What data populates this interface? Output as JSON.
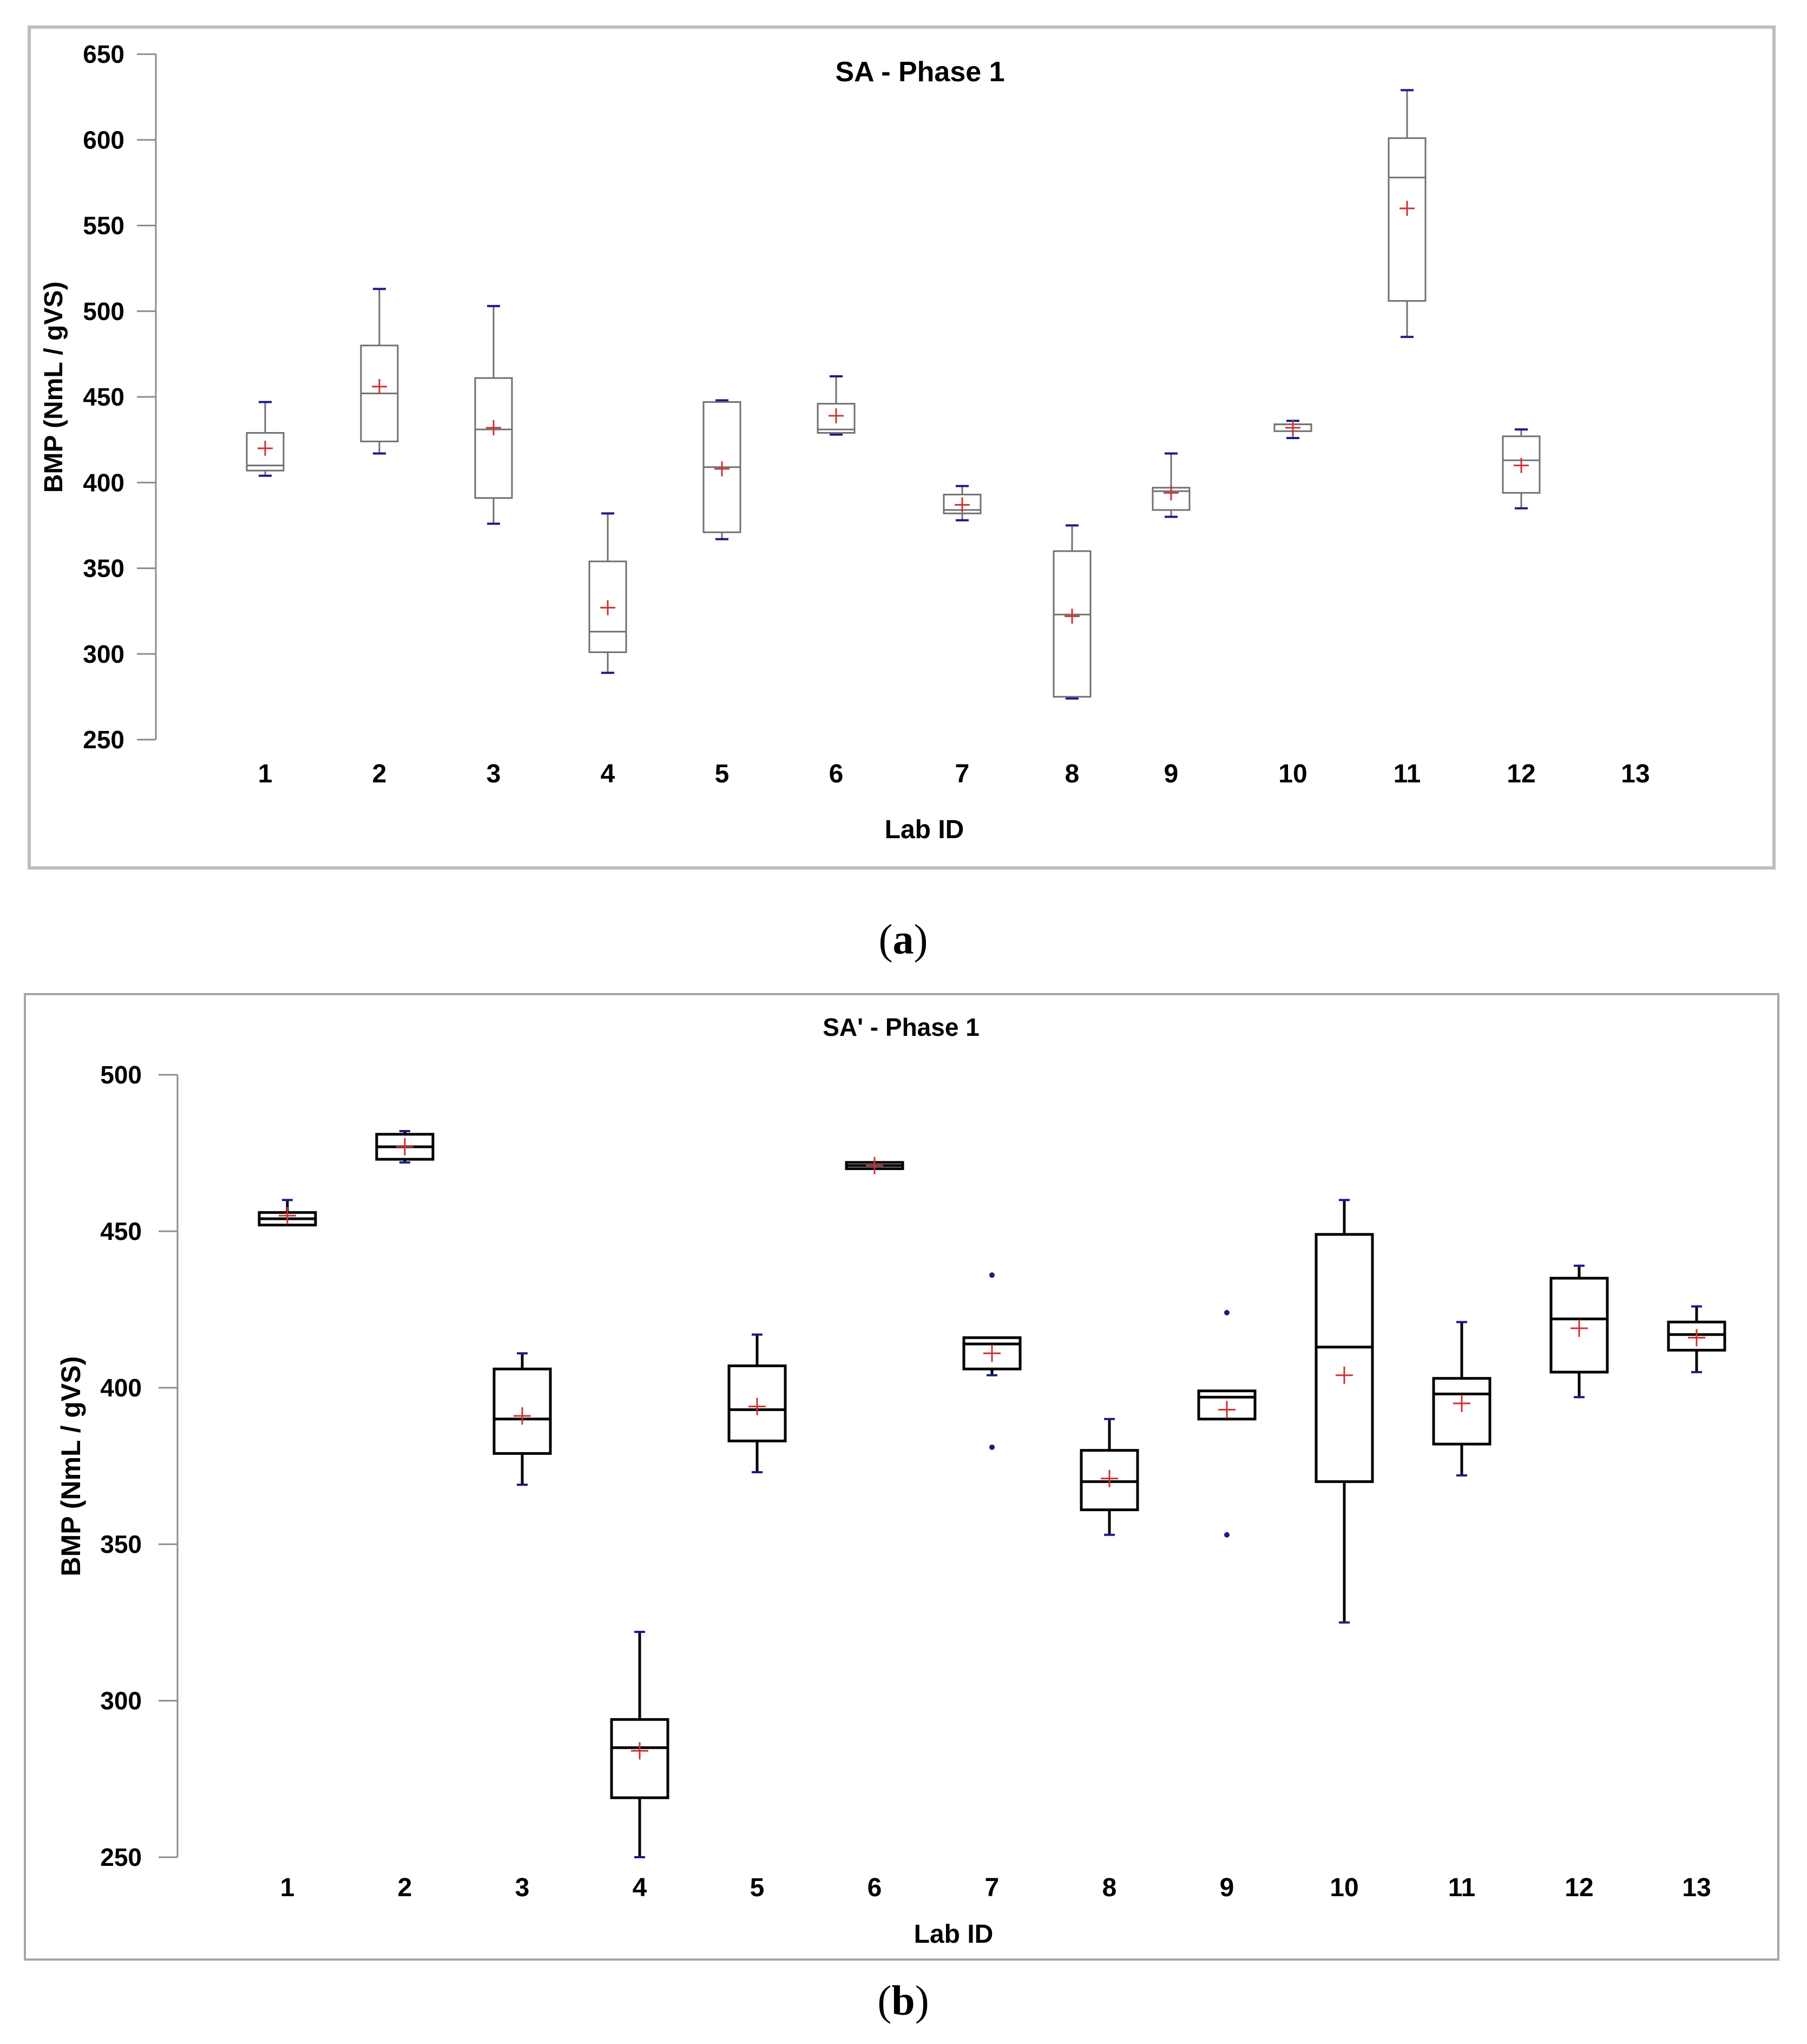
{
  "panels": [
    {
      "caption": "a",
      "chart_data": {
        "type": "box",
        "title": "SA - Phase 1",
        "xlabel": "Lab ID",
        "ylabel": "BMP (NmL / gVS)",
        "ylim": [
          250,
          650
        ],
        "yticks": [
          250,
          300,
          350,
          400,
          450,
          500,
          550,
          600,
          650
        ],
        "categories": [
          "1",
          "2",
          "3",
          "4",
          "5",
          "6",
          "7",
          "8",
          "9",
          "10",
          "11",
          "12",
          "13"
        ],
        "boxes": [
          {
            "lab": "1",
            "min": 404,
            "q1": 407,
            "median": 410,
            "q3": 429,
            "max": 447,
            "mean": 420,
            "outliers": []
          },
          {
            "lab": "2",
            "min": 417,
            "q1": 424,
            "median": 452,
            "q3": 480,
            "max": 513,
            "mean": 456,
            "outliers": []
          },
          {
            "lab": "3",
            "min": 376,
            "q1": 391,
            "median": 431,
            "q3": 461,
            "max": 503,
            "mean": 432,
            "outliers": []
          },
          {
            "lab": "4",
            "min": 289,
            "q1": 301,
            "median": 313,
            "q3": 354,
            "max": 382,
            "mean": 327,
            "outliers": []
          },
          {
            "lab": "5",
            "min": 367,
            "q1": 371,
            "median": 409,
            "q3": 447,
            "max": 448,
            "mean": 408,
            "outliers": []
          },
          {
            "lab": "6",
            "min": 428,
            "q1": 429,
            "median": 431,
            "q3": 446,
            "max": 462,
            "mean": 439,
            "outliers": []
          },
          {
            "lab": "7",
            "min": 378,
            "q1": 382,
            "median": 384,
            "q3": 393,
            "max": 398,
            "mean": 387,
            "outliers": []
          },
          {
            "lab": "8",
            "min": 274,
            "q1": 275,
            "median": 323,
            "q3": 360,
            "max": 375,
            "mean": 322,
            "outliers": []
          },
          {
            "lab": "9",
            "min": 380,
            "q1": 384,
            "median": 395,
            "q3": 397,
            "max": 417,
            "mean": 394,
            "outliers": []
          },
          {
            "lab": "10",
            "min": 426,
            "q1": 430,
            "median": 434,
            "q3": 434,
            "max": 436,
            "mean": 432,
            "outliers": []
          },
          {
            "lab": "11",
            "min": 485,
            "q1": 506,
            "median": 578,
            "q3": 601,
            "max": 629,
            "mean": 560,
            "outliers": []
          },
          {
            "lab": "12",
            "min": 385,
            "q1": 394,
            "median": 413,
            "q3": 427,
            "max": 431,
            "mean": 410,
            "outliers": []
          }
        ],
        "colors": {
          "box": "#707070",
          "whisker": "#707070",
          "endpoint": "#1a1a8c",
          "mean": "#cc3333",
          "frame": "#bdbdbd",
          "axis": "#8c8c8c",
          "text": "#000000"
        }
      }
    },
    {
      "caption": "b",
      "chart_data": {
        "type": "box",
        "title": "SA' - Phase 1",
        "xlabel": "Lab ID",
        "ylabel": "BMP (NmL / gVS)",
        "ylim": [
          250,
          500
        ],
        "yticks": [
          250,
          300,
          350,
          400,
          450,
          500
        ],
        "categories": [
          "1",
          "2",
          "3",
          "4",
          "5",
          "6",
          "7",
          "8",
          "9",
          "10",
          "11",
          "12",
          "13"
        ],
        "boxes": [
          {
            "lab": "1",
            "min": 452,
            "q1": 452,
            "median": 454,
            "q3": 456,
            "max": 460,
            "mean": 455,
            "outliers": []
          },
          {
            "lab": "2",
            "min": 472,
            "q1": 473,
            "median": 477,
            "q3": 481,
            "max": 482,
            "mean": 477,
            "outliers": []
          },
          {
            "lab": "3",
            "min": 369,
            "q1": 379,
            "median": 390,
            "q3": 406,
            "max": 411,
            "mean": 391,
            "outliers": []
          },
          {
            "lab": "4",
            "min": 250,
            "q1": 269,
            "median": 285,
            "q3": 294,
            "max": 322,
            "mean": 284,
            "outliers": []
          },
          {
            "lab": "5",
            "min": 373,
            "q1": 383,
            "median": 393,
            "q3": 407,
            "max": 417,
            "mean": 394,
            "outliers": []
          },
          {
            "lab": "6",
            "min": 470,
            "q1": 470,
            "median": 471,
            "q3": 472,
            "max": 472,
            "mean": 471,
            "outliers": []
          },
          {
            "lab": "7",
            "min": 404,
            "q1": 406,
            "median": 414,
            "q3": 416,
            "max": 416,
            "mean": 411,
            "outliers": [
              381,
              436
            ]
          },
          {
            "lab": "8",
            "min": 353,
            "q1": 361,
            "median": 370,
            "q3": 380,
            "max": 390,
            "mean": 371,
            "outliers": []
          },
          {
            "lab": "9",
            "min": 390,
            "q1": 390,
            "median": 397,
            "q3": 399,
            "max": 399,
            "mean": 393,
            "outliers": [
              353,
              424
            ]
          },
          {
            "lab": "10",
            "min": 325,
            "q1": 370,
            "median": 413,
            "q3": 449,
            "max": 460,
            "mean": 404,
            "outliers": []
          },
          {
            "lab": "11",
            "min": 372,
            "q1": 382,
            "median": 398,
            "q3": 403,
            "max": 421,
            "mean": 395,
            "outliers": []
          },
          {
            "lab": "12",
            "min": 397,
            "q1": 405,
            "median": 422,
            "q3": 435,
            "max": 439,
            "mean": 419,
            "outliers": []
          },
          {
            "lab": "13",
            "min": 405,
            "q1": 412,
            "median": 417,
            "q3": 421,
            "max": 426,
            "mean": 416,
            "outliers": []
          }
        ],
        "colors": {
          "box": "#000000",
          "whisker": "#000000",
          "endpoint": "#1a1a8c",
          "mean": "#cc3333",
          "frame": "#a6a6a6",
          "axis": "#8c8c8c",
          "text": "#000000"
        }
      }
    }
  ]
}
